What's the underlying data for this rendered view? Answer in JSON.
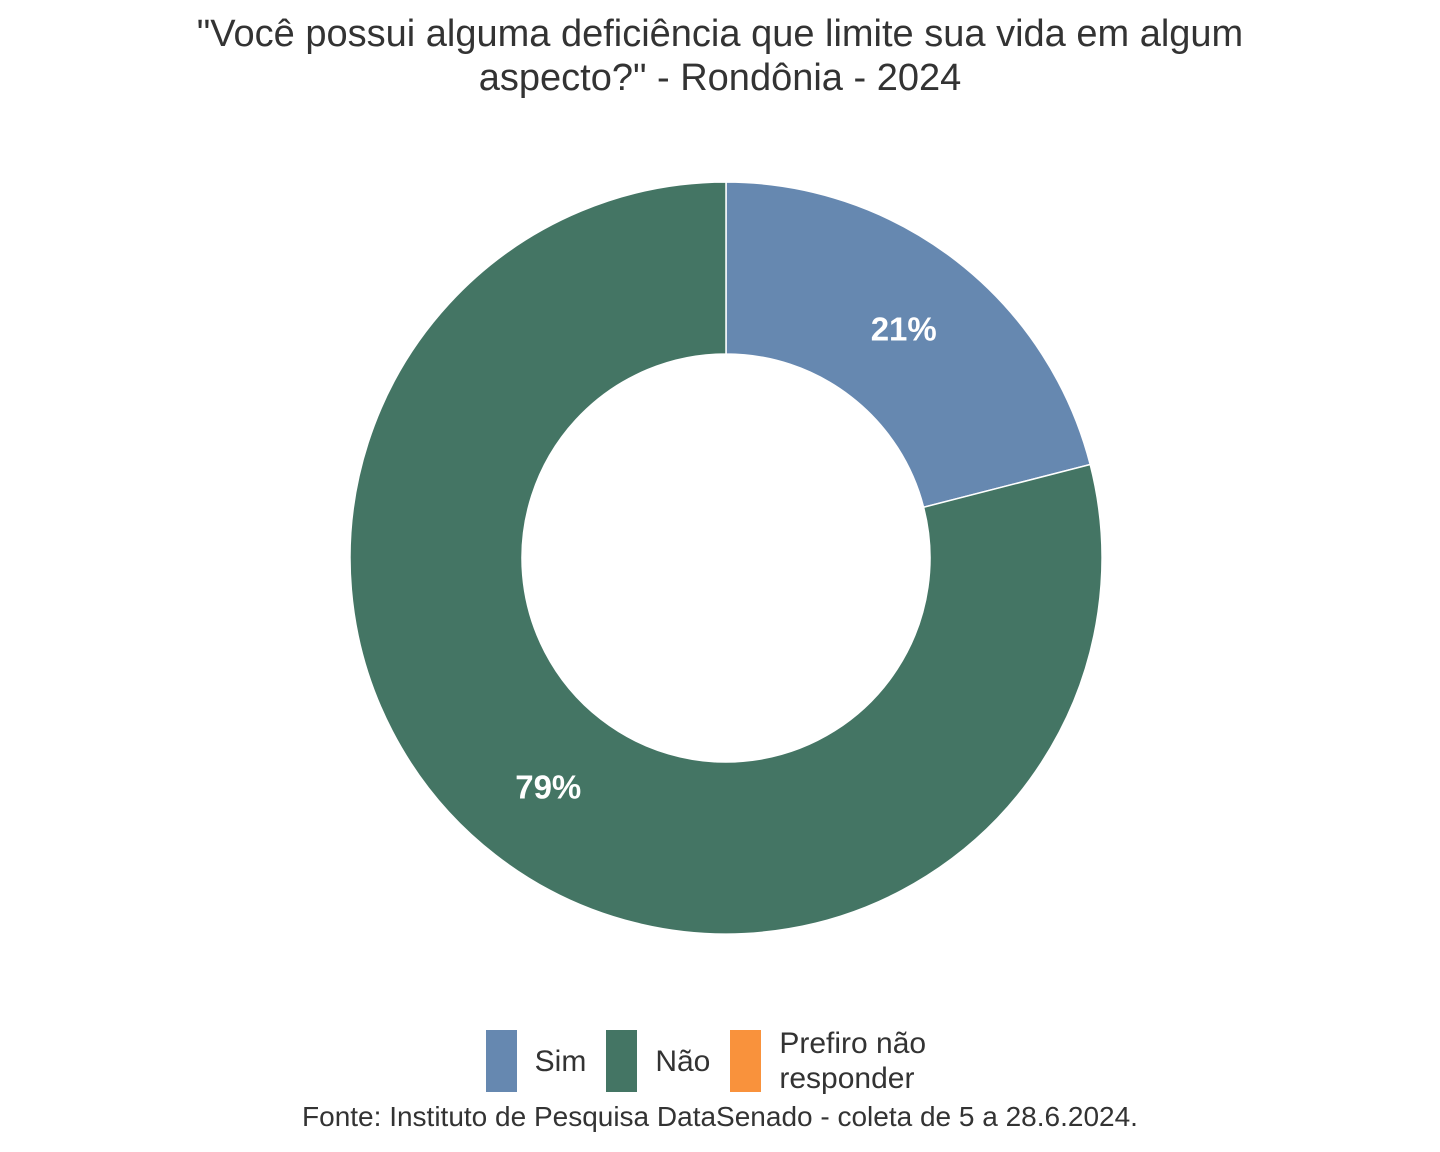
{
  "title_lines": [
    "\"Você possui alguma deficiência que limite sua vida em algum",
    "aspecto?\" - Rondônia - 2024"
  ],
  "chart_data": {
    "type": "pie",
    "style": "donut",
    "title": "\"Você possui alguma deficiência que limite sua vida em algum aspecto?\" - Rondônia - 2024",
    "categories": [
      "Sim",
      "Não",
      "Prefiro não responder"
    ],
    "values": [
      21,
      79,
      0
    ],
    "labels": [
      "21%",
      "79%",
      ""
    ],
    "colors": [
      "#6688b0",
      "#447564",
      "#f9923c"
    ],
    "legend_position": "bottom",
    "source": "Fonte: Instituto de Pesquisa DataSenado - coleta de 5 a 28.6.2024."
  },
  "legend": [
    {
      "label": "Sim",
      "color": "#6688b0"
    },
    {
      "label": "Não",
      "color": "#447564"
    },
    {
      "label": "Prefiro não responder",
      "color": "#f9923c"
    }
  ]
}
